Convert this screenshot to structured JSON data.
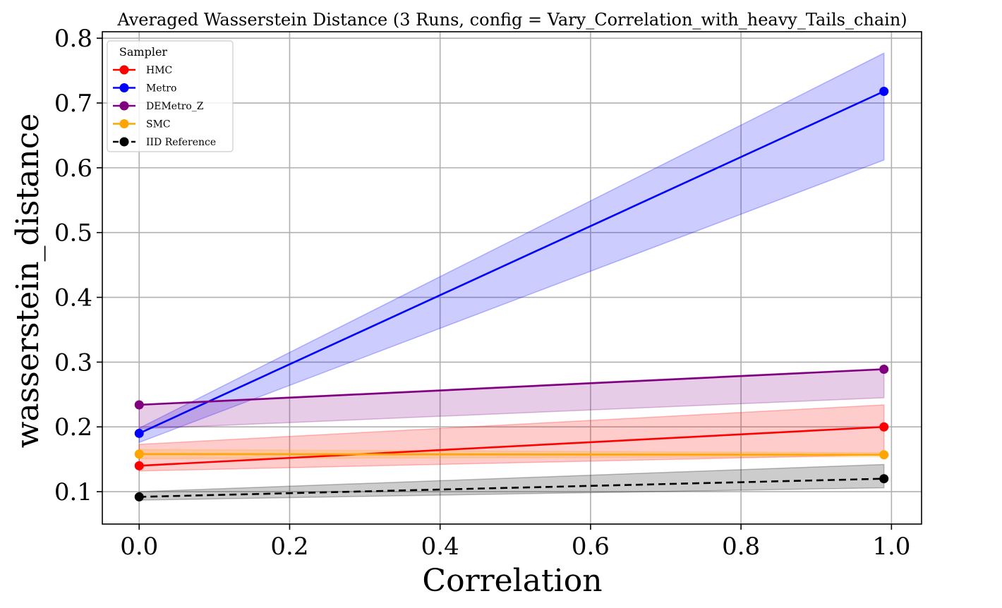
{
  "chart_data": {
    "type": "line",
    "title": "Averaged Wasserstein Distance (3 Runs, config = Vary_Correlation_with_heavy_Tails_chain)",
    "xlabel": "Correlation",
    "ylabel": "wasserstein_distance",
    "xlim": [
      -0.049,
      1.04
    ],
    "ylim": [
      0.05,
      0.81
    ],
    "xticks": [
      0.0,
      0.2,
      0.4,
      0.6,
      0.8,
      1.0
    ],
    "xtick_labels": [
      "0.0",
      "0.2",
      "0.4",
      "0.6",
      "0.8",
      "1.0"
    ],
    "yticks": [
      0.1,
      0.2,
      0.3,
      0.4,
      0.5,
      0.6,
      0.7,
      0.8
    ],
    "ytick_labels": [
      "0.1",
      "0.2",
      "0.3",
      "0.4",
      "0.5",
      "0.6",
      "0.7",
      "0.8"
    ],
    "grid": true,
    "legend": {
      "title": "Sampler",
      "placement": "top-left"
    },
    "x": [
      0.0,
      0.99
    ],
    "series": [
      {
        "name": "HMC",
        "color": "#ff0000",
        "dashed": false,
        "values": [
          0.14,
          0.2
        ],
        "lower": [
          0.132,
          0.157
        ],
        "upper": [
          0.173,
          0.234
        ]
      },
      {
        "name": "Metro",
        "color": "#0000ff",
        "dashed": false,
        "values": [
          0.19,
          0.718
        ],
        "lower": [
          0.176,
          0.612
        ],
        "upper": [
          0.198,
          0.777
        ]
      },
      {
        "name": "DEMetro_Z",
        "color": "#800080",
        "dashed": false,
        "values": [
          0.234,
          0.289
        ],
        "lower": [
          0.197,
          0.245
        ],
        "upper": [
          0.235,
          0.29
        ]
      },
      {
        "name": "SMC",
        "color": "#ffa500",
        "dashed": false,
        "values": [
          0.158,
          0.157
        ],
        "lower": [
          0.151,
          0.154
        ],
        "upper": [
          0.165,
          0.16
        ]
      },
      {
        "name": "IID Reference",
        "color": "#000000",
        "dashed": true,
        "values": [
          0.092,
          0.12
        ],
        "lower": [
          0.087,
          0.106
        ],
        "upper": [
          0.1,
          0.142
        ]
      }
    ]
  }
}
